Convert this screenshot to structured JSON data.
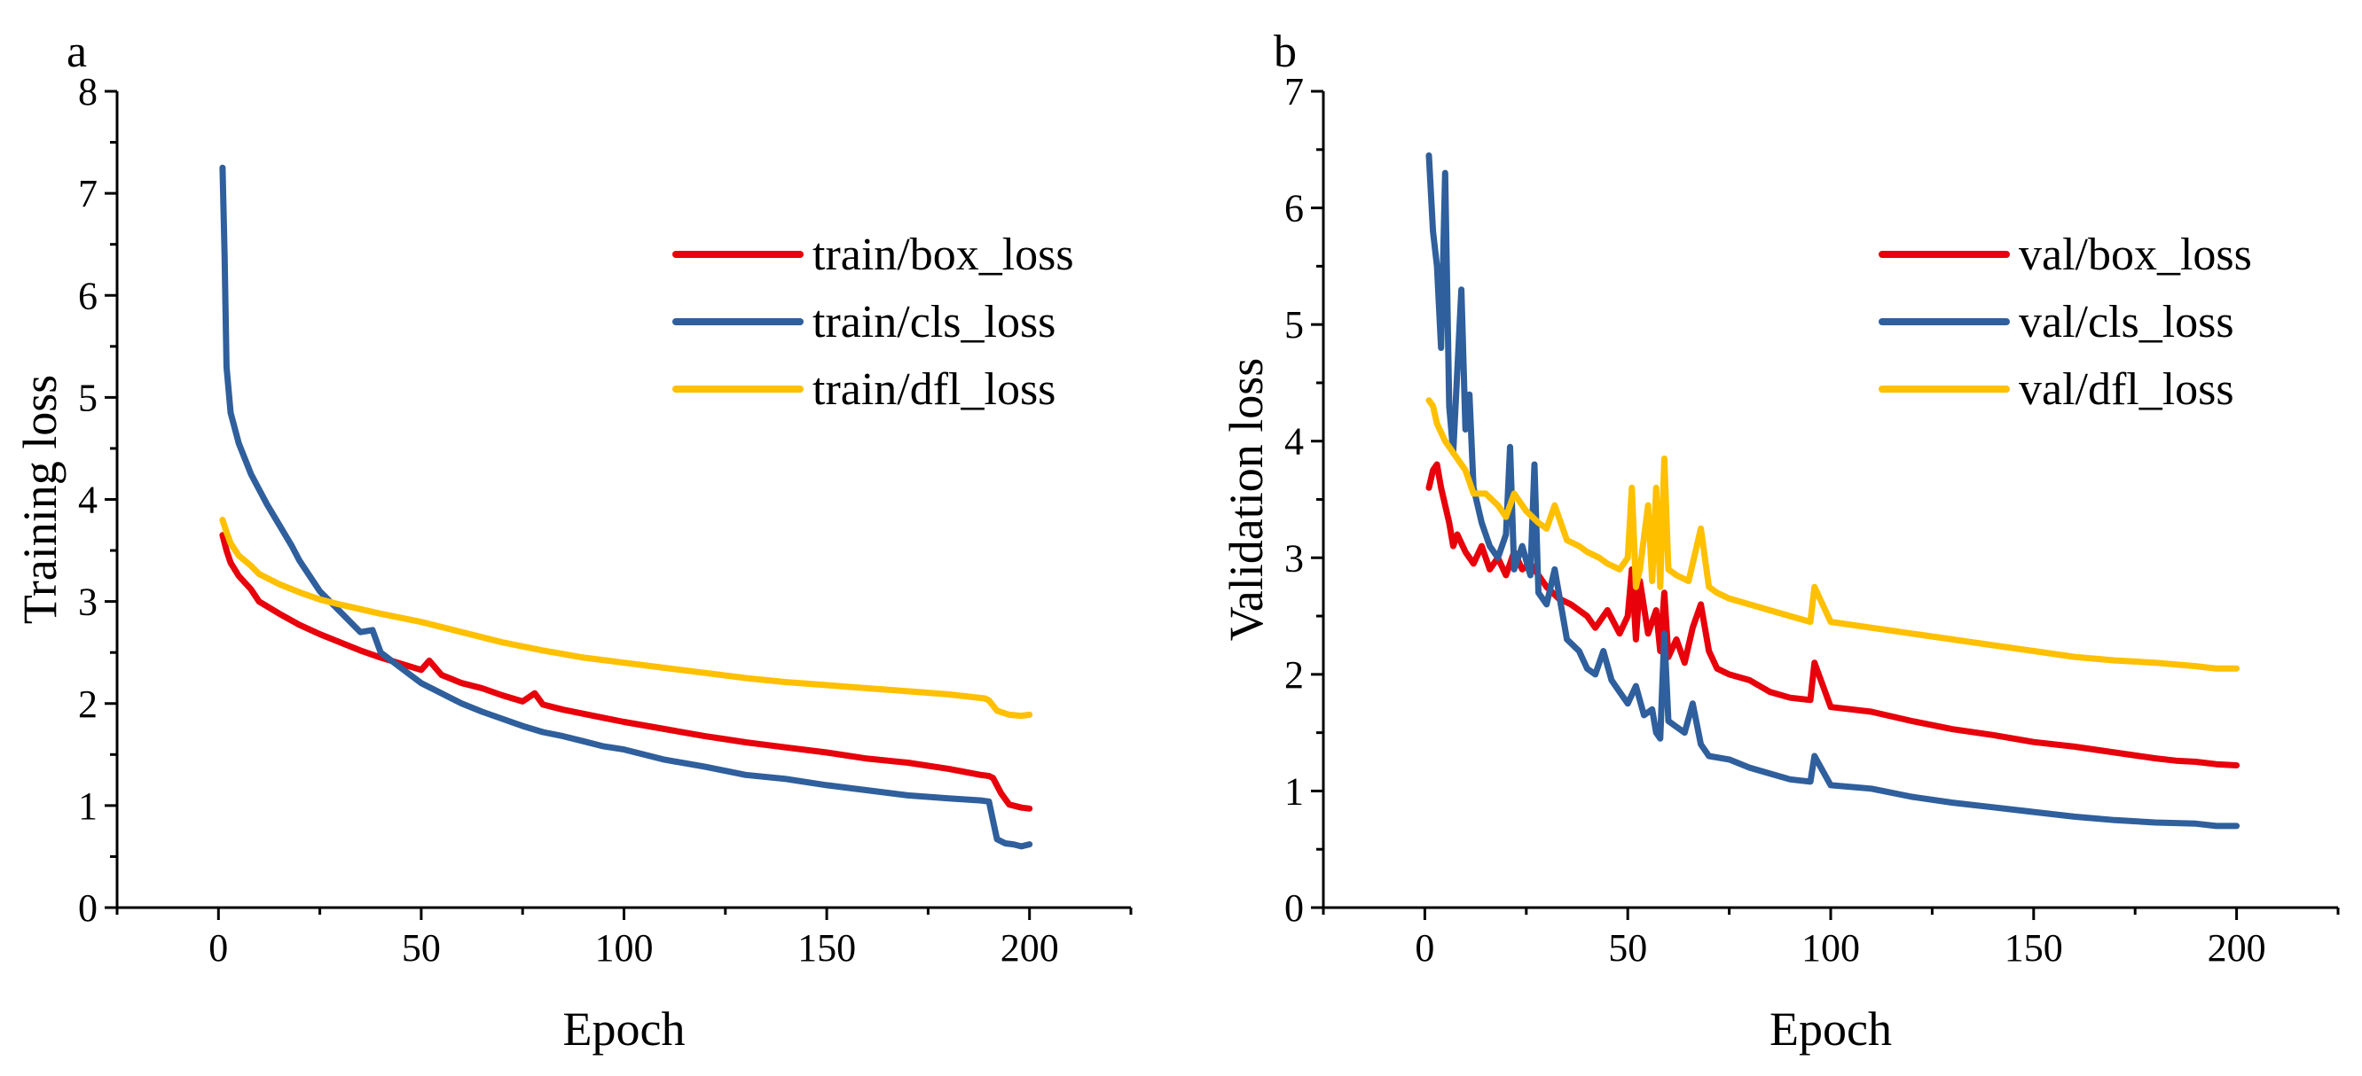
{
  "chart_data": [
    {
      "type": "line",
      "panel_label": "a",
      "xlabel": "Epoch",
      "ylabel": "Training loss",
      "xlim": [
        -25,
        225
      ],
      "ylim": [
        0,
        8
      ],
      "xticks": [
        0,
        50,
        100,
        150,
        200
      ],
      "yticks": [
        0,
        1,
        2,
        3,
        4,
        5,
        6,
        7,
        8
      ],
      "grid": false,
      "legend": "top-right",
      "series": [
        {
          "name": "train/box_loss",
          "color": "#e8000b",
          "x": [
            1,
            2,
            3,
            5,
            8,
            10,
            15,
            20,
            25,
            30,
            35,
            40,
            45,
            50,
            52,
            55,
            60,
            65,
            70,
            75,
            78,
            80,
            85,
            90,
            95,
            100,
            110,
            120,
            125,
            130,
            140,
            150,
            160,
            170,
            180,
            188,
            190,
            191,
            193,
            195,
            198,
            200
          ],
          "y": [
            3.65,
            3.5,
            3.38,
            3.25,
            3.12,
            3.0,
            2.88,
            2.77,
            2.68,
            2.6,
            2.52,
            2.45,
            2.39,
            2.33,
            2.42,
            2.28,
            2.2,
            2.15,
            2.08,
            2.02,
            2.1,
            1.99,
            1.94,
            1.9,
            1.86,
            1.82,
            1.75,
            1.68,
            1.65,
            1.62,
            1.57,
            1.52,
            1.46,
            1.42,
            1.36,
            1.3,
            1.29,
            1.27,
            1.12,
            1.01,
            0.98,
            0.97
          ]
        },
        {
          "name": "train/cls_loss",
          "color": "#2f5f9c",
          "x": [
            1,
            1.5,
            2,
            3,
            5,
            8,
            10,
            12,
            15,
            18,
            20,
            25,
            30,
            35,
            38,
            40,
            45,
            50,
            55,
            60,
            65,
            70,
            75,
            80,
            85,
            90,
            95,
            100,
            110,
            120,
            130,
            140,
            150,
            160,
            170,
            180,
            188,
            190,
            191,
            192,
            194,
            196,
            198,
            200
          ],
          "y": [
            7.25,
            6.4,
            5.3,
            4.85,
            4.55,
            4.25,
            4.1,
            3.95,
            3.75,
            3.55,
            3.4,
            3.1,
            2.9,
            2.7,
            2.72,
            2.5,
            2.35,
            2.2,
            2.1,
            2.0,
            1.92,
            1.85,
            1.78,
            1.72,
            1.68,
            1.63,
            1.58,
            1.55,
            1.45,
            1.38,
            1.3,
            1.26,
            1.2,
            1.15,
            1.1,
            1.07,
            1.05,
            1.04,
            0.85,
            0.67,
            0.63,
            0.62,
            0.6,
            0.62
          ]
        },
        {
          "name": "train/dfl_loss",
          "color": "#ffc000",
          "x": [
            1,
            2,
            3,
            5,
            8,
            10,
            15,
            20,
            25,
            30,
            40,
            50,
            60,
            70,
            80,
            90,
            100,
            110,
            120,
            130,
            140,
            150,
            160,
            170,
            180,
            189,
            190,
            192,
            195,
            198,
            200
          ],
          "y": [
            3.8,
            3.68,
            3.57,
            3.45,
            3.35,
            3.27,
            3.17,
            3.09,
            3.02,
            2.97,
            2.88,
            2.8,
            2.7,
            2.6,
            2.52,
            2.45,
            2.4,
            2.35,
            2.3,
            2.25,
            2.21,
            2.18,
            2.15,
            2.12,
            2.09,
            2.05,
            2.03,
            1.93,
            1.89,
            1.88,
            1.89
          ]
        }
      ]
    },
    {
      "type": "line",
      "panel_label": "b",
      "xlabel": "Epoch",
      "ylabel": "Validation loss",
      "xlim": [
        -25,
        225
      ],
      "ylim": [
        0,
        7
      ],
      "xticks": [
        0,
        50,
        100,
        150,
        200
      ],
      "yticks": [
        0,
        1,
        2,
        3,
        4,
        5,
        6,
        7
      ],
      "grid": false,
      "legend": "top-right",
      "series": [
        {
          "name": "val/box_loss",
          "color": "#e8000b",
          "x": [
            1,
            2,
            3,
            4,
            5,
            6,
            7,
            8,
            10,
            12,
            14,
            16,
            18,
            20,
            22,
            24,
            26,
            28,
            30,
            33,
            36,
            40,
            42,
            45,
            48,
            50,
            51,
            52,
            53,
            55,
            57,
            58,
            59,
            60,
            62,
            64,
            66,
            68,
            70,
            72,
            75,
            80,
            85,
            90,
            95,
            96,
            100,
            105,
            110,
            120,
            130,
            140,
            150,
            160,
            170,
            180,
            185,
            190,
            195,
            200
          ],
          "y": [
            3.6,
            3.75,
            3.8,
            3.6,
            3.45,
            3.3,
            3.1,
            3.2,
            3.05,
            2.95,
            3.1,
            2.9,
            3.0,
            2.85,
            3.05,
            2.9,
            2.95,
            2.85,
            2.75,
            2.65,
            2.6,
            2.5,
            2.4,
            2.55,
            2.35,
            2.5,
            2.9,
            2.3,
            2.8,
            2.35,
            2.55,
            2.2,
            2.7,
            2.15,
            2.3,
            2.1,
            2.4,
            2.6,
            2.2,
            2.05,
            2.0,
            1.95,
            1.85,
            1.8,
            1.78,
            2.1,
            1.72,
            1.7,
            1.68,
            1.6,
            1.53,
            1.48,
            1.42,
            1.38,
            1.33,
            1.28,
            1.26,
            1.25,
            1.23,
            1.22
          ]
        },
        {
          "name": "val/cls_loss",
          "color": "#2f5f9c",
          "x": [
            1,
            2,
            3,
            4,
            5,
            6,
            7,
            8,
            9,
            10,
            11,
            12,
            14,
            16,
            18,
            20,
            21,
            22,
            24,
            26,
            27,
            28,
            30,
            32,
            35,
            38,
            40,
            42,
            44,
            46,
            48,
            50,
            52,
            54,
            56,
            57,
            58,
            59,
            60,
            62,
            64,
            66,
            68,
            70,
            75,
            80,
            85,
            90,
            95,
            96,
            100,
            110,
            120,
            130,
            140,
            150,
            160,
            170,
            180,
            190,
            195,
            200
          ],
          "y": [
            6.45,
            5.8,
            5.5,
            4.8,
            6.3,
            4.3,
            3.9,
            4.6,
            5.3,
            4.1,
            4.4,
            3.6,
            3.3,
            3.1,
            3.0,
            3.2,
            3.95,
            2.9,
            3.1,
            2.85,
            3.8,
            2.7,
            2.6,
            2.9,
            2.3,
            2.2,
            2.05,
            2.0,
            2.2,
            1.95,
            1.85,
            1.75,
            1.9,
            1.65,
            1.7,
            1.5,
            1.45,
            2.35,
            1.6,
            1.55,
            1.5,
            1.75,
            1.4,
            1.3,
            1.27,
            1.2,
            1.15,
            1.1,
            1.08,
            1.3,
            1.05,
            1.02,
            0.95,
            0.9,
            0.86,
            0.82,
            0.78,
            0.75,
            0.73,
            0.72,
            0.7,
            0.7
          ]
        },
        {
          "name": "val/dfl_loss",
          "color": "#ffc000",
          "x": [
            1,
            2,
            3,
            5,
            8,
            10,
            12,
            15,
            18,
            20,
            22,
            25,
            28,
            30,
            32,
            35,
            38,
            40,
            43,
            45,
            48,
            50,
            51,
            52,
            53,
            55,
            56,
            57,
            58,
            59,
            60,
            62,
            65,
            68,
            70,
            72,
            75,
            80,
            85,
            90,
            95,
            96,
            100,
            110,
            120,
            130,
            140,
            150,
            160,
            170,
            180,
            190,
            195,
            200
          ],
          "y": [
            4.35,
            4.3,
            4.15,
            4.0,
            3.85,
            3.75,
            3.55,
            3.55,
            3.45,
            3.35,
            3.55,
            3.4,
            3.3,
            3.25,
            3.45,
            3.15,
            3.1,
            3.05,
            3.0,
            2.95,
            2.9,
            3.0,
            3.6,
            2.75,
            2.9,
            3.45,
            2.8,
            3.6,
            2.75,
            3.85,
            2.9,
            2.85,
            2.8,
            3.25,
            2.75,
            2.7,
            2.65,
            2.6,
            2.55,
            2.5,
            2.45,
            2.75,
            2.45,
            2.4,
            2.35,
            2.3,
            2.25,
            2.2,
            2.15,
            2.12,
            2.1,
            2.07,
            2.05,
            2.05
          ]
        }
      ]
    }
  ]
}
